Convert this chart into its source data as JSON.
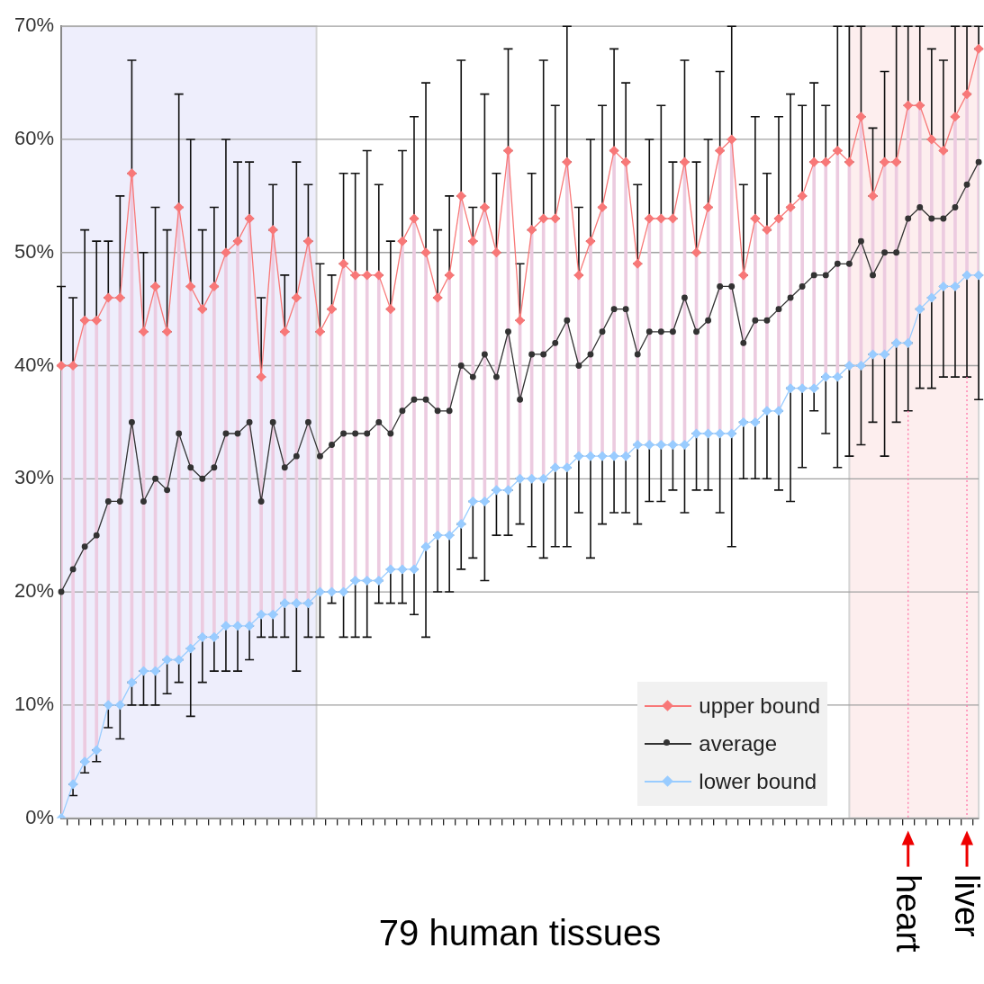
{
  "chart_data": {
    "type": "line",
    "xlabel": "79 human tissues",
    "categories": [
      null,
      null,
      null,
      null,
      null,
      null,
      null,
      null,
      null,
      null,
      null,
      null,
      null,
      null,
      null,
      null,
      null,
      null,
      null,
      null,
      null,
      null,
      null,
      null,
      null,
      null,
      null,
      null,
      null,
      null,
      null,
      null,
      null,
      null,
      null,
      null,
      null,
      null,
      null,
      null,
      null,
      null,
      null,
      null,
      null,
      null,
      null,
      null,
      null,
      null,
      null,
      null,
      null,
      null,
      null,
      null,
      null,
      null,
      null,
      null,
      null,
      null,
      null,
      null,
      null,
      null,
      null,
      null,
      null,
      null,
      null,
      null,
      null,
      null,
      null,
      null,
      null,
      null,
      null
    ],
    "series": [
      {
        "name": "upper bound",
        "color": "#f87878",
        "marker": "diamond",
        "values": [
          40,
          40,
          44,
          44,
          46,
          46,
          57,
          43,
          47,
          43,
          54,
          47,
          45,
          47,
          50,
          51,
          53,
          39,
          52,
          43,
          46,
          51,
          43,
          45,
          49,
          48,
          48,
          48,
          45,
          51,
          53,
          50,
          46,
          48,
          55,
          51,
          54,
          50,
          59,
          44,
          52,
          53,
          53,
          58,
          48,
          51,
          54,
          59,
          58,
          49,
          53,
          53,
          53,
          58,
          50,
          54,
          59,
          60,
          48,
          53,
          52,
          53,
          54,
          55,
          58,
          58,
          59,
          58,
          62,
          55,
          58,
          58,
          63,
          63,
          60,
          59,
          62,
          64,
          68
        ],
        "errors": [
          [
            40,
            47
          ],
          [
            40,
            46
          ],
          [
            44,
            52
          ],
          [
            44,
            51
          ],
          [
            46,
            51
          ],
          [
            46,
            55
          ],
          [
            57,
            67
          ],
          [
            43,
            50
          ],
          [
            47,
            54
          ],
          [
            43,
            52
          ],
          [
            54,
            64
          ],
          [
            47,
            60
          ],
          [
            45,
            52
          ],
          [
            47,
            54
          ],
          [
            50,
            60
          ],
          [
            51,
            58
          ],
          [
            53,
            58
          ],
          [
            39,
            46
          ],
          [
            52,
            56
          ],
          [
            43,
            48
          ],
          [
            46,
            58
          ],
          [
            51,
            56
          ],
          [
            43,
            49
          ],
          [
            45,
            48
          ],
          [
            49,
            57
          ],
          [
            48,
            57
          ],
          [
            48,
            59
          ],
          [
            48,
            56
          ],
          [
            45,
            51
          ],
          [
            51,
            59
          ],
          [
            53,
            62
          ],
          [
            50,
            65
          ],
          [
            46,
            52
          ],
          [
            48,
            55
          ],
          [
            55,
            67
          ],
          [
            51,
            54
          ],
          [
            54,
            64
          ],
          [
            50,
            57
          ],
          [
            59,
            68
          ],
          [
            44,
            49
          ],
          [
            52,
            57
          ],
          [
            53,
            67
          ],
          [
            53,
            63
          ],
          [
            58,
            70
          ],
          [
            48,
            54
          ],
          [
            51,
            60
          ],
          [
            54,
            63
          ],
          [
            59,
            68
          ],
          [
            58,
            65
          ],
          [
            49,
            56
          ],
          [
            53,
            60
          ],
          [
            53,
            63
          ],
          [
            53,
            58
          ],
          [
            58,
            67
          ],
          [
            50,
            58
          ],
          [
            54,
            60
          ],
          [
            59,
            66
          ],
          [
            60,
            70
          ],
          [
            48,
            56
          ],
          [
            53,
            62
          ],
          [
            52,
            57
          ],
          [
            53,
            62
          ],
          [
            54,
            64
          ],
          [
            55,
            63
          ],
          [
            58,
            65
          ],
          [
            58,
            63
          ],
          [
            59,
            70
          ],
          [
            58,
            70
          ],
          [
            62,
            70
          ],
          [
            55,
            61
          ],
          [
            58,
            66
          ],
          [
            58,
            70
          ],
          [
            63,
            70
          ],
          [
            63,
            70
          ],
          [
            60,
            68
          ],
          [
            59,
            67
          ],
          [
            62,
            70
          ],
          [
            64,
            70
          ],
          [
            68,
            70
          ]
        ]
      },
      {
        "name": "average",
        "color": "#333333",
        "marker": "circle",
        "values": [
          20,
          22,
          24,
          25,
          28,
          28,
          35,
          28,
          30,
          29,
          34,
          31,
          30,
          31,
          34,
          34,
          35,
          28,
          35,
          31,
          32,
          35,
          32,
          33,
          34,
          34,
          34,
          35,
          34,
          36,
          37,
          37,
          36,
          36,
          40,
          39,
          41,
          39,
          43,
          37,
          41,
          41,
          42,
          44,
          40,
          41,
          43,
          45,
          45,
          41,
          43,
          43,
          43,
          46,
          43,
          44,
          47,
          47,
          42,
          44,
          44,
          45,
          46,
          47,
          48,
          48,
          49,
          49,
          51,
          48,
          50,
          50,
          53,
          54,
          53,
          53,
          54,
          56,
          58
        ]
      },
      {
        "name": "lower bound",
        "color": "#99ccff",
        "marker": "diamond",
        "values": [
          0,
          3,
          5,
          6,
          10,
          10,
          12,
          13,
          13,
          14,
          14,
          15,
          16,
          16,
          17,
          17,
          17,
          18,
          18,
          19,
          19,
          19,
          20,
          20,
          20,
          21,
          21,
          21,
          22,
          22,
          22,
          24,
          25,
          25,
          26,
          28,
          28,
          29,
          29,
          30,
          30,
          30,
          31,
          31,
          32,
          32,
          32,
          32,
          32,
          33,
          33,
          33,
          33,
          33,
          34,
          34,
          34,
          34,
          35,
          35,
          36,
          36,
          38,
          38,
          38,
          39,
          39,
          40,
          40,
          41,
          41,
          42,
          42,
          45,
          46,
          47,
          47,
          48,
          48
        ],
        "errors": [
          null,
          [
            2,
            3
          ],
          [
            4,
            5
          ],
          [
            5,
            6
          ],
          [
            8,
            10
          ],
          [
            7,
            10
          ],
          [
            10,
            12
          ],
          [
            10,
            13
          ],
          [
            10,
            13
          ],
          [
            11,
            14
          ],
          [
            12,
            14
          ],
          [
            9,
            15
          ],
          [
            12,
            16
          ],
          [
            13,
            16
          ],
          [
            13,
            17
          ],
          [
            13,
            17
          ],
          [
            14,
            17
          ],
          [
            16,
            18
          ],
          [
            16,
            18
          ],
          [
            16,
            19
          ],
          [
            13,
            19
          ],
          [
            16,
            19
          ],
          [
            16,
            20
          ],
          [
            19,
            20
          ],
          [
            16,
            20
          ],
          [
            16,
            21
          ],
          [
            16,
            21
          ],
          [
            19,
            21
          ],
          [
            19,
            22
          ],
          [
            19,
            22
          ],
          [
            18,
            22
          ],
          [
            16,
            24
          ],
          [
            20,
            25
          ],
          [
            20,
            25
          ],
          [
            22,
            26
          ],
          [
            23,
            28
          ],
          [
            21,
            28
          ],
          [
            25,
            29
          ],
          [
            25,
            29
          ],
          [
            26,
            30
          ],
          [
            24,
            30
          ],
          [
            23,
            30
          ],
          [
            24,
            31
          ],
          [
            24,
            31
          ],
          [
            27,
            32
          ],
          [
            23,
            32
          ],
          [
            26,
            32
          ],
          [
            27,
            32
          ],
          [
            27,
            32
          ],
          [
            26,
            33
          ],
          [
            28,
            33
          ],
          [
            28,
            33
          ],
          [
            29,
            33
          ],
          [
            27,
            33
          ],
          [
            29,
            34
          ],
          [
            29,
            34
          ],
          [
            27,
            34
          ],
          [
            24,
            34
          ],
          [
            30,
            35
          ],
          [
            30,
            35
          ],
          [
            30,
            36
          ],
          [
            29,
            36
          ],
          [
            28,
            38
          ],
          [
            31,
            38
          ],
          [
            36,
            38
          ],
          [
            34,
            39
          ],
          [
            31,
            39
          ],
          [
            32,
            40
          ],
          [
            33,
            40
          ],
          [
            35,
            41
          ],
          [
            32,
            41
          ],
          [
            35,
            42
          ],
          [
            36,
            42
          ],
          [
            38,
            45
          ],
          [
            38,
            46
          ],
          [
            39,
            47
          ],
          [
            39,
            47
          ],
          [
            39,
            48
          ],
          [
            37,
            48
          ]
        ]
      },
      {
        "type": "bar",
        "color": "#eccbe0",
        "base": [
          0,
          3,
          5,
          6,
          10,
          10,
          12,
          13,
          13,
          14,
          14,
          15,
          16,
          16,
          17,
          17,
          17,
          18,
          18,
          19,
          19,
          19,
          20,
          20,
          20,
          21,
          21,
          21,
          22,
          22,
          22,
          24,
          25,
          25,
          26,
          28,
          28,
          29,
          29,
          30,
          30,
          30,
          31,
          31,
          32,
          32,
          32,
          32,
          32,
          33,
          33,
          33,
          33,
          33,
          34,
          34,
          34,
          34,
          35,
          35,
          36,
          36,
          38,
          38,
          38,
          39,
          39,
          40,
          40,
          41,
          41,
          42,
          42,
          45,
          46,
          47,
          47,
          48,
          48
        ],
        "values": [
          40,
          37,
          39,
          38,
          36,
          36,
          45,
          30,
          34,
          29,
          40,
          32,
          29,
          31,
          33,
          34,
          36,
          21,
          34,
          24,
          27,
          32,
          23,
          25,
          29,
          27,
          27,
          27,
          23,
          29,
          31,
          26,
          21,
          23,
          29,
          23,
          26,
          21,
          30,
          14,
          22,
          23,
          22,
          27,
          16,
          19,
          22,
          27,
          26,
          16,
          20,
          20,
          20,
          25,
          16,
          20,
          25,
          26,
          13,
          18,
          16,
          17,
          16,
          17,
          20,
          19,
          20,
          18,
          22,
          14,
          17,
          16,
          21,
          18,
          14,
          12,
          15,
          16,
          20
        ]
      }
    ],
    "ylim": [
      0,
      70
    ],
    "yticks": [
      {
        "value": 0,
        "label": "0%"
      },
      {
        "value": 10,
        "label": "10%"
      },
      {
        "value": 20,
        "label": "20%"
      },
      {
        "value": 30,
        "label": "30%"
      },
      {
        "value": 40,
        "label": "40%"
      },
      {
        "value": 50,
        "label": "50%"
      },
      {
        "value": 60,
        "label": "60%"
      },
      {
        "value": 70,
        "label": "70%"
      }
    ],
    "grid": "y",
    "legend": "bottom right",
    "annotations": [
      "heart",
      "liver"
    ]
  }
}
